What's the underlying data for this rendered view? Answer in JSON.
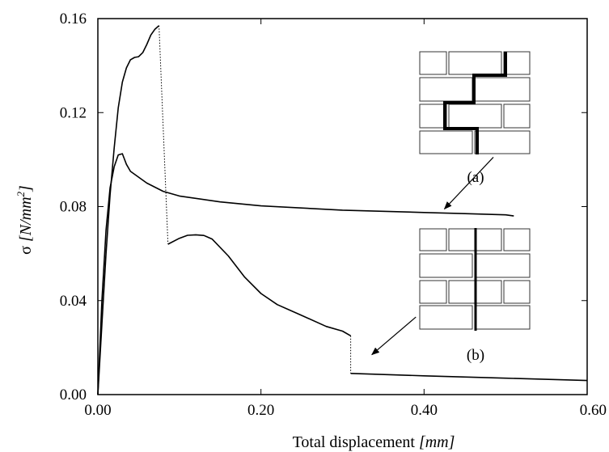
{
  "chart_data": {
    "type": "line",
    "title": "",
    "xlabel": {
      "text": "Total displacement",
      "unit": "[mm]"
    },
    "ylabel": {
      "symbol": "σ",
      "unit_open": "[N/mm",
      "unit_sup": "2",
      "unit_close": "]"
    },
    "xlim": [
      0,
      0.6
    ],
    "ylim": [
      0,
      0.16
    ],
    "x_ticks": [
      0,
      0.2,
      0.4,
      0.6
    ],
    "x_tick_labels": [
      "0.00",
      "0.20",
      "0.40",
      "0.60"
    ],
    "y_ticks": [
      0,
      0.04,
      0.08,
      0.12,
      0.16
    ],
    "y_tick_labels": [
      "0.00",
      "0.04",
      "0.08",
      "0.12",
      "0.16"
    ],
    "grid": false,
    "legend": "none",
    "series": [
      {
        "panel": "(a)",
        "style": "solid",
        "points": [
          [
            0,
            0
          ],
          [
            0.005,
            0.04
          ],
          [
            0.01,
            0.07
          ],
          [
            0.015,
            0.088
          ],
          [
            0.02,
            0.097
          ],
          [
            0.025,
            0.102
          ],
          [
            0.03,
            0.1025
          ],
          [
            0.035,
            0.098
          ],
          [
            0.04,
            0.095
          ],
          [
            0.06,
            0.09
          ],
          [
            0.08,
            0.0865
          ],
          [
            0.1,
            0.0845
          ],
          [
            0.15,
            0.082
          ],
          [
            0.2,
            0.0803
          ],
          [
            0.3,
            0.0785
          ],
          [
            0.4,
            0.0775
          ],
          [
            0.45,
            0.077
          ],
          [
            0.5,
            0.0765
          ],
          [
            0.51,
            0.076
          ]
        ]
      },
      {
        "panel": "(b)",
        "style": "solid",
        "points": [
          [
            0,
            0
          ],
          [
            0.005,
            0.03
          ],
          [
            0.01,
            0.06
          ],
          [
            0.015,
            0.085
          ],
          [
            0.02,
            0.105
          ],
          [
            0.025,
            0.122
          ],
          [
            0.03,
            0.133
          ],
          [
            0.035,
            0.139
          ],
          [
            0.04,
            0.1425
          ],
          [
            0.045,
            0.1435
          ],
          [
            0.05,
            0.1438
          ],
          [
            0.055,
            0.1455
          ],
          [
            0.06,
            0.149
          ],
          [
            0.065,
            0.153
          ],
          [
            0.07,
            0.1555
          ],
          [
            0.075,
            0.157
          ]
        ]
      },
      {
        "panel": "(b)",
        "style": "dotted",
        "points": [
          [
            0.075,
            0.157
          ],
          [
            0.086,
            0.064
          ]
        ]
      },
      {
        "panel": "(b)",
        "style": "solid",
        "points": [
          [
            0.086,
            0.064
          ],
          [
            0.1,
            0.0665
          ],
          [
            0.11,
            0.0678
          ],
          [
            0.12,
            0.068
          ],
          [
            0.13,
            0.0677
          ],
          [
            0.14,
            0.0662
          ],
          [
            0.16,
            0.059
          ],
          [
            0.18,
            0.05
          ],
          [
            0.2,
            0.043
          ],
          [
            0.22,
            0.0383
          ],
          [
            0.25,
            0.0337
          ],
          [
            0.28,
            0.029
          ],
          [
            0.3,
            0.027
          ],
          [
            0.31,
            0.025
          ]
        ]
      },
      {
        "panel": "(b)",
        "style": "dotted",
        "points": [
          [
            0.31,
            0.025
          ],
          [
            0.31,
            0.009
          ]
        ]
      },
      {
        "panel": "(b)",
        "style": "solid",
        "points": [
          [
            0.31,
            0.009
          ],
          [
            0.4,
            0.008
          ],
          [
            0.5,
            0.007
          ],
          [
            0.6,
            0.006
          ]
        ]
      }
    ],
    "annotations": [
      {
        "text": "(a)",
        "arrow_from": [
          0.485,
          0.101
        ],
        "arrow_to": [
          0.425,
          0.079
        ]
      },
      {
        "text": "(b)",
        "arrow_from": [
          0.39,
          0.033
        ],
        "arrow_to": [
          0.336,
          0.017
        ]
      }
    ]
  }
}
